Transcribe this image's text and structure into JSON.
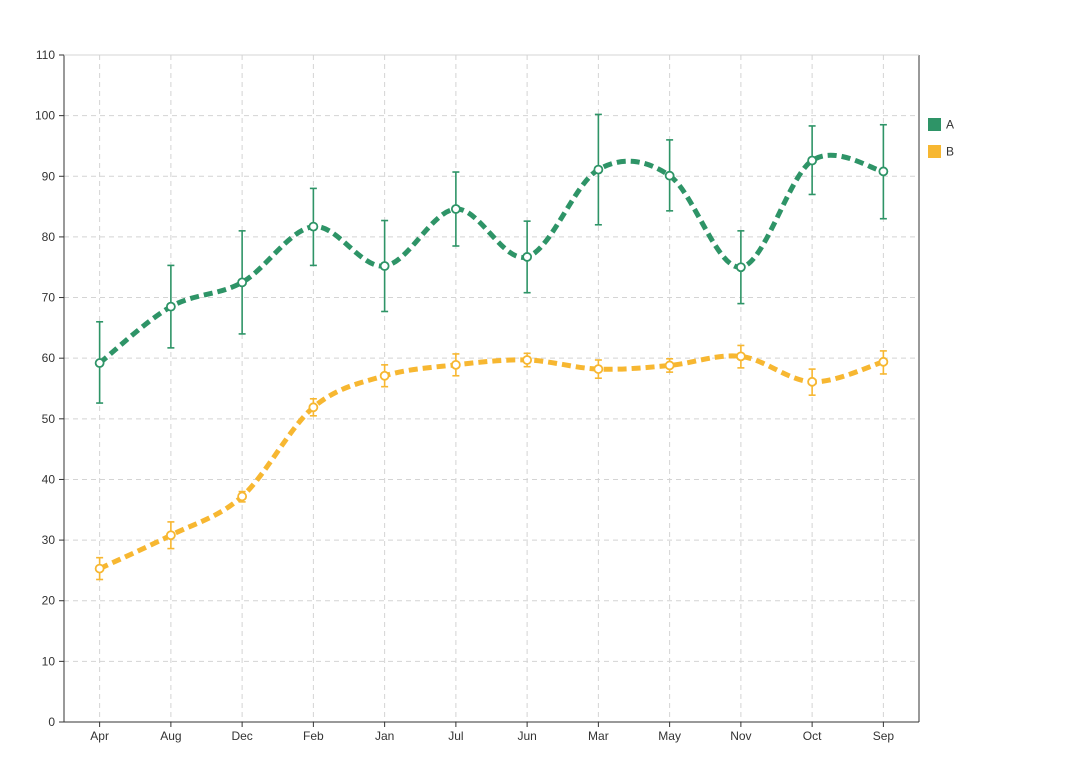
{
  "chart_data": {
    "type": "line",
    "title": "",
    "xlabel": "",
    "ylabel": "",
    "categories": [
      "Apr",
      "Aug",
      "Dec",
      "Feb",
      "Jan",
      "Jul",
      "Jun",
      "Mar",
      "May",
      "Nov",
      "Oct",
      "Sep"
    ],
    "ylim": [
      0,
      110
    ],
    "yticks": [
      0,
      10,
      20,
      30,
      40,
      50,
      60,
      70,
      80,
      90,
      100,
      110
    ],
    "grid": true,
    "legend_position": "right",
    "series": [
      {
        "name": "A",
        "color": "#2e9467",
        "values": [
          59.2,
          68.5,
          72.5,
          81.7,
          75.2,
          84.6,
          76.7,
          91.1,
          90.1,
          75.0,
          92.6,
          90.8
        ],
        "error_low": [
          52.6,
          61.7,
          64.0,
          75.3,
          67.7,
          78.5,
          70.8,
          82.0,
          84.3,
          69.0,
          87.0,
          83.0
        ],
        "error_high": [
          66.0,
          75.3,
          81.0,
          88.0,
          82.7,
          90.7,
          82.6,
          100.2,
          96.0,
          81.0,
          98.3,
          98.5
        ]
      },
      {
        "name": "B",
        "color": "#f7b731",
        "values": [
          25.3,
          30.8,
          37.2,
          51.9,
          57.1,
          58.9,
          59.7,
          58.2,
          58.8,
          60.3,
          56.1,
          59.4
        ],
        "error_low": [
          23.5,
          28.6,
          36.3,
          50.5,
          55.3,
          57.1,
          58.6,
          56.7,
          57.7,
          58.4,
          53.9,
          57.4
        ],
        "error_high": [
          27.1,
          33.0,
          38.0,
          53.3,
          58.9,
          60.7,
          60.8,
          59.7,
          59.9,
          62.1,
          58.2,
          61.2
        ]
      }
    ]
  }
}
